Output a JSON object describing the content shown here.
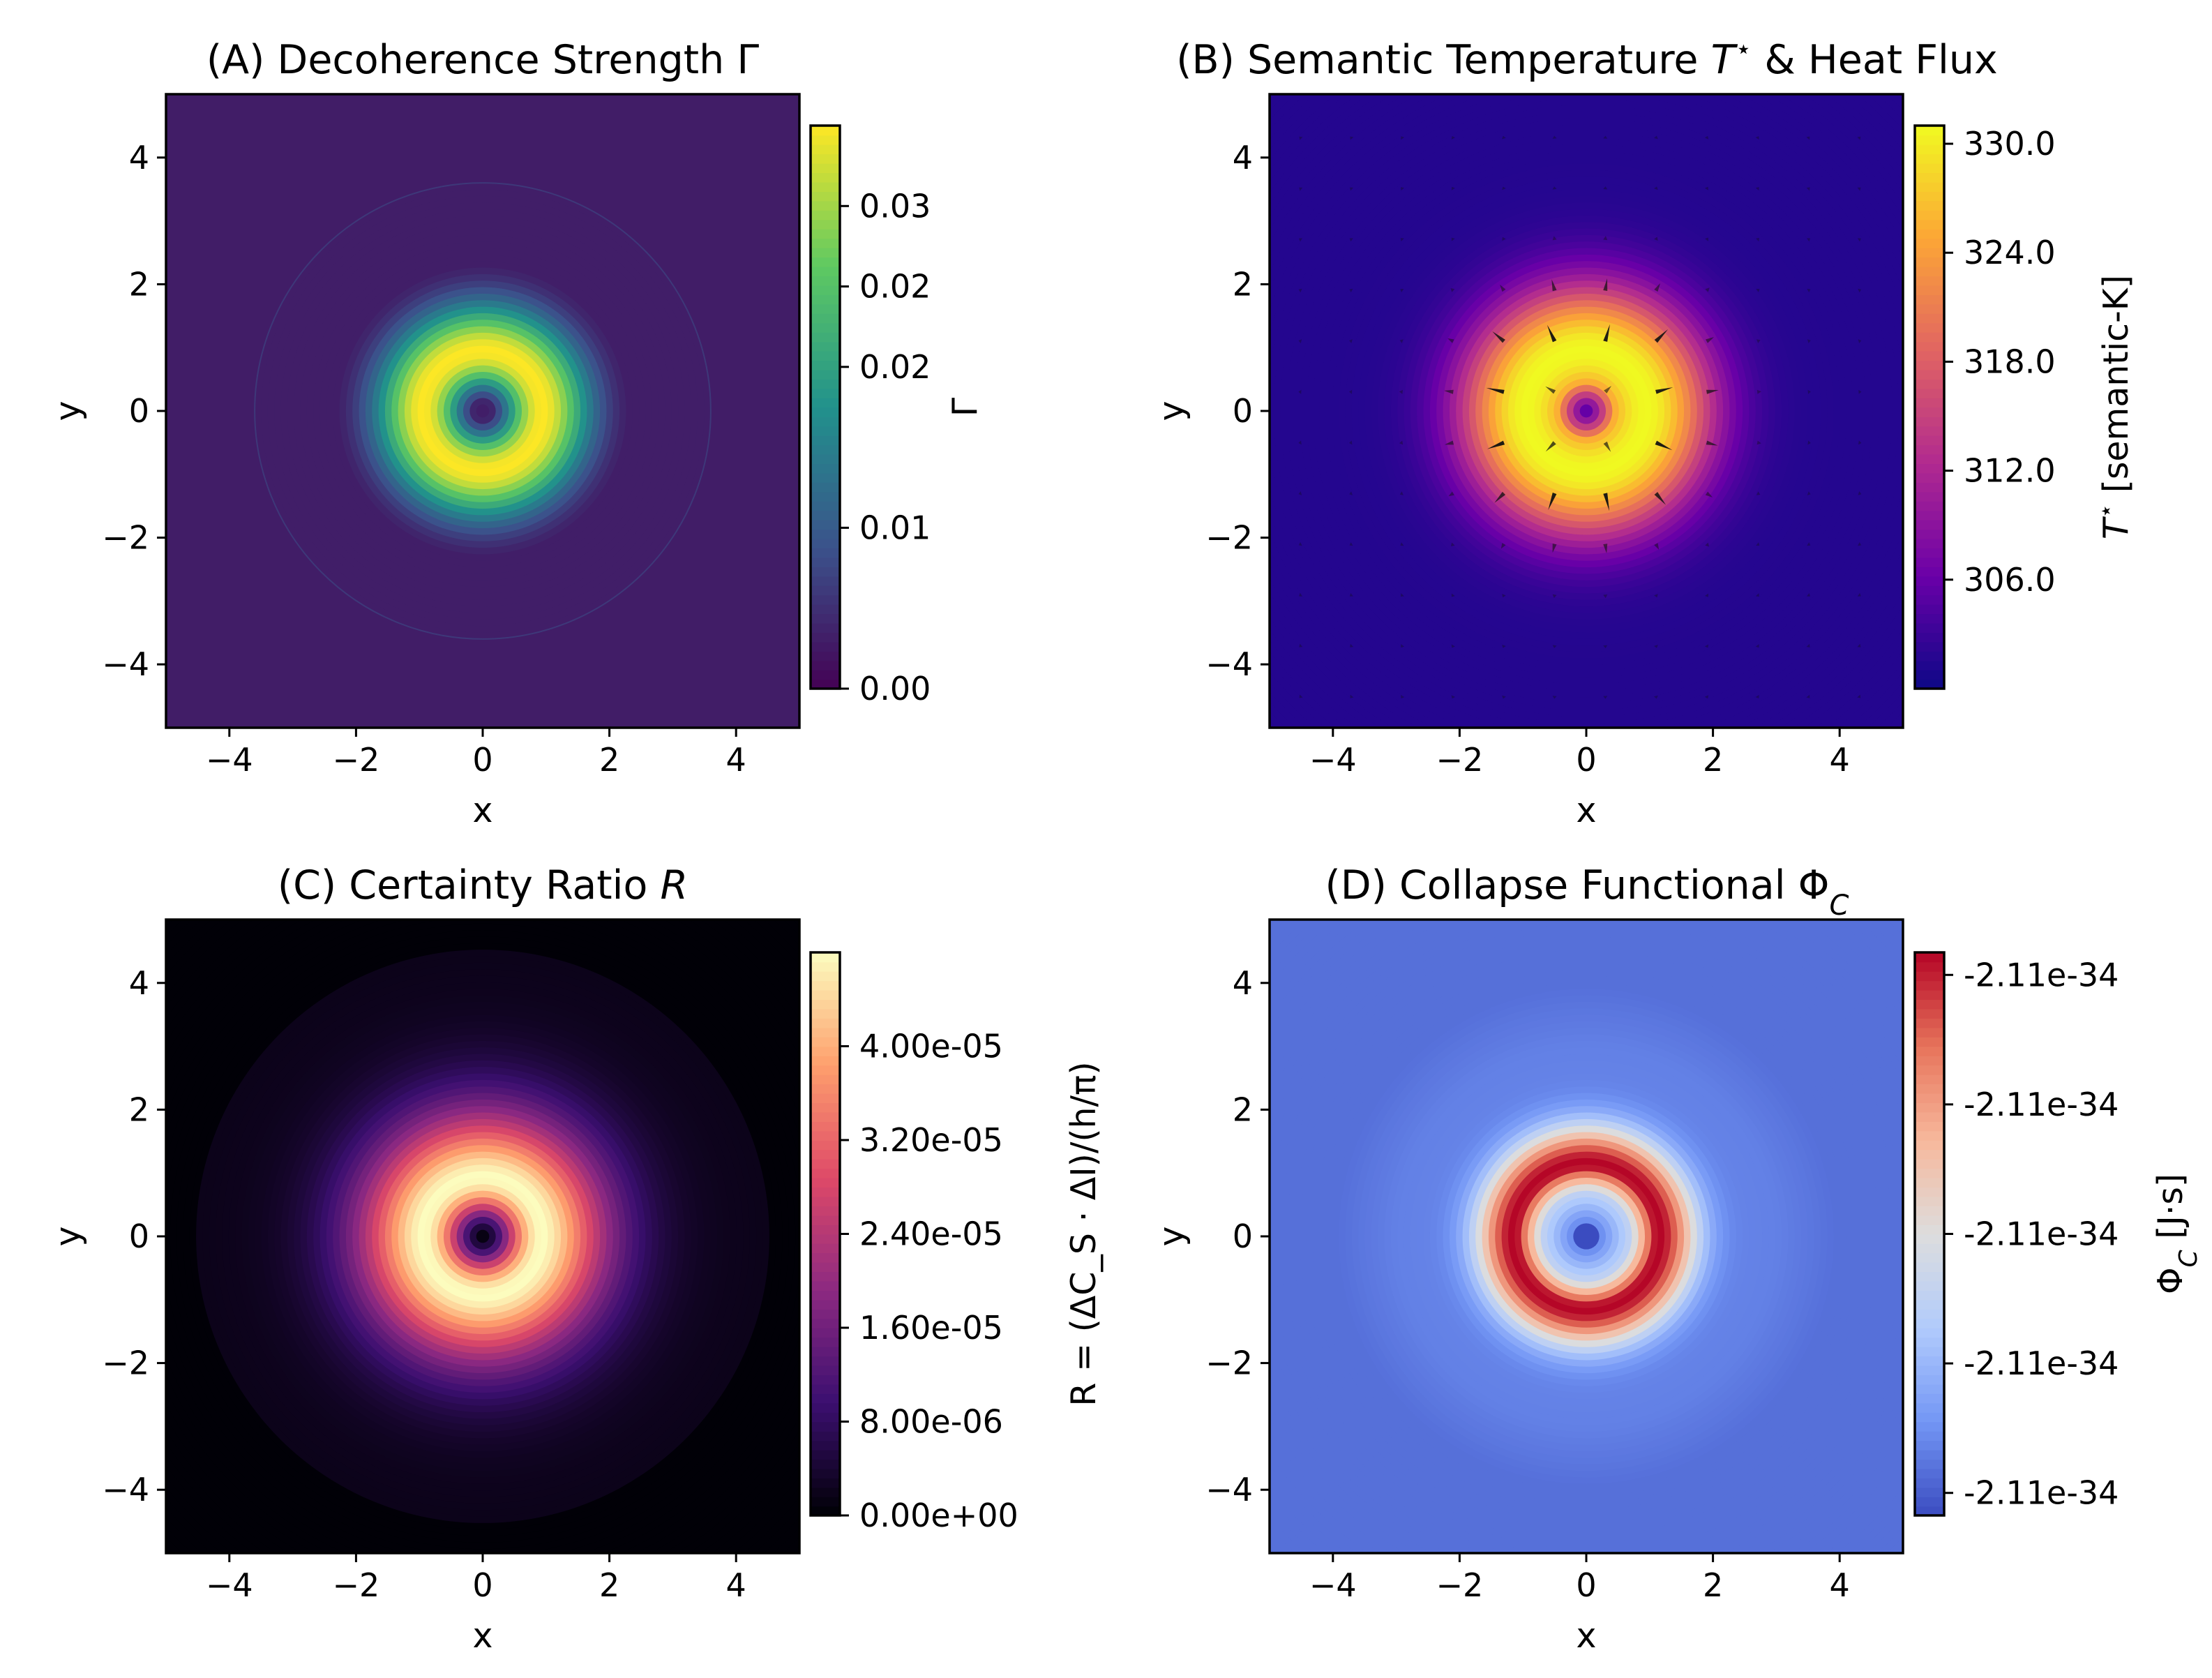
{
  "figure": {
    "layout": "2x2 grid of heatmap panels with colorbars"
  },
  "chart_data": [
    {
      "type": "heatmap",
      "panel": "A",
      "title": "(A) Decoherence Strength Γ",
      "xlabel": "x",
      "ylabel": "y",
      "xlim": [
        -5,
        5
      ],
      "ylim": [
        -5,
        5
      ],
      "xticks": [
        -4,
        -2,
        0,
        2,
        4
      ],
      "yticks": [
        -4,
        -2,
        0,
        2,
        4
      ],
      "xtick_labels": [
        "−4",
        "−2",
        "0",
        "2",
        "4"
      ],
      "ytick_labels": [
        "4",
        "2",
        "0",
        "−2",
        "−4"
      ],
      "colormap": "viridis",
      "colors": [
        "#440154",
        "#3b528b",
        "#21918c",
        "#5ec962",
        "#fde725"
      ],
      "field": "ring: zero at center, peak near r≈1, background beyond r≈3.6",
      "ring_peak_radius": 1.0,
      "outer_radius": 3.6,
      "vmin": 0.0,
      "vmax": 0.035,
      "colorbar": {
        "label": "Γ",
        "tick_values": [
          0.0,
          0.01,
          0.02,
          0.025,
          0.03
        ],
        "tick_labels": [
          "0.00",
          "0.01",
          "0.02",
          "0.02",
          "0.03"
        ]
      }
    },
    {
      "type": "heatmap",
      "panel": "B",
      "title": "(B) Semantic Temperature T* & Heat Flux",
      "title_parts": [
        "(B) Semantic Temperature ",
        "T",
        "⋆",
        "  & Heat Flux"
      ],
      "xlabel": "x",
      "ylabel": "y",
      "xlim": [
        -5,
        5
      ],
      "ylim": [
        -5,
        5
      ],
      "xticks": [
        -4,
        -2,
        0,
        2,
        4
      ],
      "yticks": [
        -4,
        -2,
        0,
        2,
        4
      ],
      "xtick_labels": [
        "−4",
        "−2",
        "0",
        "2",
        "4"
      ],
      "ytick_labels": [
        "4",
        "2",
        "0",
        "−2",
        "−4"
      ],
      "colormap": "plasma",
      "colors": [
        "#0d0887",
        "#6a00a8",
        "#b12a90",
        "#e16462",
        "#fca636",
        "#f0f921"
      ],
      "field": "ring: peak near r≈1, dark at center, decays to ~300 outward",
      "overlay": "quiver heat-flux arrows pointing outward",
      "vmin": 300.0,
      "vmax": 331.0,
      "colorbar": {
        "label": "T* [semantic-K]",
        "label_parts": [
          "T",
          "⋆",
          " [semantic-K]"
        ],
        "tick_values": [
          306.0,
          312.0,
          318.0,
          324.0,
          330.0
        ],
        "tick_labels": [
          "306.0",
          "312.0",
          "318.0",
          "324.0",
          "330.0"
        ]
      }
    },
    {
      "type": "heatmap",
      "panel": "C",
      "title": "(C) Certainty Ratio R",
      "title_parts": [
        "(C) Certainty Ratio ",
        "R"
      ],
      "xlabel": "x",
      "ylabel": "y",
      "xlim": [
        -5,
        5
      ],
      "ylim": [
        -5,
        5
      ],
      "xticks": [
        -4,
        -2,
        0,
        2,
        4
      ],
      "yticks": [
        -4,
        -2,
        0,
        2,
        4
      ],
      "xtick_labels": [
        "−4",
        "−2",
        "0",
        "2",
        "4"
      ],
      "ytick_labels": [
        "4",
        "2",
        "0",
        "−2",
        "−4"
      ],
      "colormap": "magma",
      "colors": [
        "#000004",
        "#3b0f70",
        "#8c2981",
        "#de4968",
        "#fe9f6d",
        "#fcfdbf"
      ],
      "field": "ring: zero at center, peak near r≈1, decays outward",
      "vmin": 0.0,
      "vmax": 4.8e-05,
      "colorbar": {
        "label": "R = (ΔC_S · ΔI)/(h/π)",
        "tick_values": [
          0.0,
          8e-06,
          1.6e-05,
          2.4e-05,
          3.2e-05,
          4e-05
        ],
        "tick_labels": [
          "0.00e+00",
          "8.00e-06",
          "1.60e-05",
          "2.40e-05",
          "3.20e-05",
          "4.00e-05"
        ]
      }
    },
    {
      "type": "heatmap",
      "panel": "D",
      "title": "(D) Collapse Functional Φ_C",
      "title_parts": [
        "(D) Collapse Functional Φ",
        "C"
      ],
      "xlabel": "x",
      "ylabel": "y",
      "xlim": [
        -5,
        5
      ],
      "ylim": [
        -5,
        5
      ],
      "xticks": [
        -4,
        -2,
        0,
        2,
        4
      ],
      "yticks": [
        -4,
        -2,
        0,
        2,
        4
      ],
      "xtick_labels": [
        "−4",
        "−2",
        "0",
        "2",
        "4"
      ],
      "ytick_labels": [
        "4",
        "2",
        "0",
        "−2",
        "−4"
      ],
      "colormap": "coolwarm",
      "colors": [
        "#3b4cc0",
        "#7396f5",
        "#b1cbfc",
        "#dddddd",
        "#f7b89c",
        "#e7745b",
        "#b40426"
      ],
      "field": "ring: blue center, red ring near r≈1.1, blue background",
      "vmin": -2.11e-34,
      "vmax": -2.11e-34,
      "colorbar": {
        "label": "Φ_C [J·s]",
        "label_parts": [
          "Φ",
          "C",
          " [J·s]"
        ],
        "tick_labels": [
          "-2.11e-34",
          "-2.11e-34",
          "-2.11e-34",
          "-2.11e-34",
          "-2.11e-34"
        ]
      }
    }
  ]
}
